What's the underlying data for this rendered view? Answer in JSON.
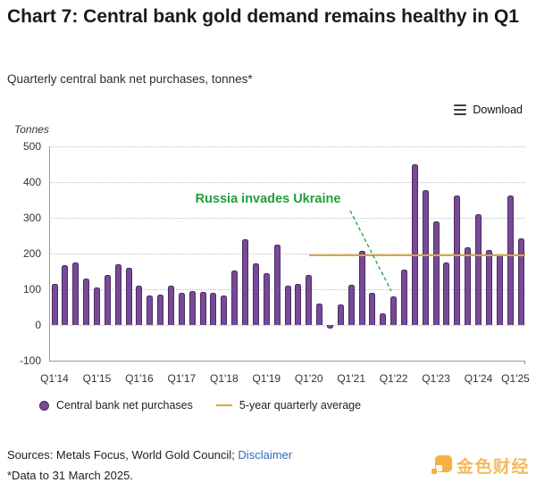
{
  "header": {
    "title": "Chart 7: Central bank gold demand remains healthy in Q1",
    "subtitle": "Quarterly central bank net purchases, tonnes*"
  },
  "toolbar": {
    "download_label": "Download"
  },
  "chart_data": {
    "type": "bar",
    "title": "Quarterly central bank net purchases, tonnes*",
    "y_axis_title": "Tonnes",
    "ylim": [
      -100,
      500
    ],
    "y_ticks": [
      500,
      400,
      300,
      200,
      100,
      0,
      -100
    ],
    "grid": "horizontal-dotted",
    "frequency": "quarterly",
    "x_start": "Q1'14",
    "x_end": "Q1'25",
    "x_tick_labels": [
      "Q1'14",
      "Q1'15",
      "Q1'16",
      "Q1'17",
      "Q1'18",
      "Q1'19",
      "Q1'20",
      "Q1'21",
      "Q1'22",
      "Q1'23",
      "Q1'24",
      "Q1'25"
    ],
    "x_tick_every": 4,
    "series_name": "Central bank net purchases",
    "values": [
      116,
      167,
      175,
      130,
      104,
      139,
      170,
      160,
      109,
      82,
      86,
      109,
      89,
      96,
      93,
      90,
      82,
      152,
      239,
      173,
      145,
      224,
      111,
      116,
      139,
      60,
      -11,
      58,
      113,
      208,
      89,
      32,
      80,
      155,
      450,
      378,
      290,
      176,
      362,
      217,
      309,
      210,
      197,
      362,
      242
    ],
    "average_line": {
      "label": "5-year quarterly average",
      "value": 196,
      "starts_at": "Q1'20"
    },
    "annotation": {
      "text": "Russia invades Ukraine",
      "points_to": "Q1'22"
    },
    "colors": {
      "bar": "#764b96",
      "bar_border": "#4e2a66",
      "average_line": "#e1a43c",
      "annotation": "#1f9e3d"
    }
  },
  "legend": {
    "items": [
      {
        "label": "Central bank net purchases",
        "swatch": "purple-circle"
      },
      {
        "label": "5-year quarterly average",
        "swatch": "gold-line"
      }
    ]
  },
  "footer": {
    "sources_prefix": "Sources: Metals Focus, World Gold Council; ",
    "disclaimer_link": "Disclaimer",
    "footnote": "*Data to 31 March 2025.",
    "logo_text": "金色财经"
  }
}
